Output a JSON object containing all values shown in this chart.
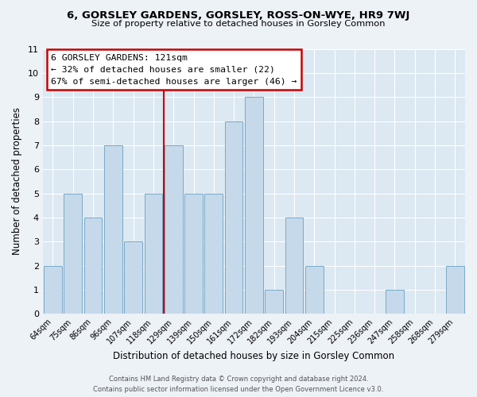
{
  "title": "6, GORSLEY GARDENS, GORSLEY, ROSS-ON-WYE, HR9 7WJ",
  "subtitle": "Size of property relative to detached houses in Gorsley Common",
  "xlabel": "Distribution of detached houses by size in Gorsley Common",
  "ylabel": "Number of detached properties",
  "bins": [
    "64sqm",
    "75sqm",
    "86sqm",
    "96sqm",
    "107sqm",
    "118sqm",
    "129sqm",
    "139sqm",
    "150sqm",
    "161sqm",
    "172sqm",
    "182sqm",
    "193sqm",
    "204sqm",
    "215sqm",
    "225sqm",
    "236sqm",
    "247sqm",
    "258sqm",
    "268sqm",
    "279sqm"
  ],
  "values": [
    2,
    5,
    4,
    7,
    3,
    5,
    7,
    5,
    5,
    8,
    9,
    1,
    4,
    2,
    0,
    0,
    0,
    1,
    0,
    0,
    2
  ],
  "bar_color": "#c6d9ea",
  "bar_edge_color": "#7aaac8",
  "vline_color": "#cc0000",
  "vline_x_index": 5.5,
  "annotation_title": "6 GORSLEY GARDENS: 121sqm",
  "annotation_line1": "← 32% of detached houses are smaller (22)",
  "annotation_line2": "67% of semi-detached houses are larger (46) →",
  "annotation_box_facecolor": "#ffffff",
  "annotation_box_edgecolor": "#cc0000",
  "ylim": [
    0,
    11
  ],
  "yticks": [
    0,
    1,
    2,
    3,
    4,
    5,
    6,
    7,
    8,
    9,
    10,
    11
  ],
  "plot_bgcolor": "#dce8f2",
  "fig_bgcolor": "#edf2f7",
  "grid_color": "#ffffff",
  "footer1": "Contains HM Land Registry data © Crown copyright and database right 2024.",
  "footer2": "Contains public sector information licensed under the Open Government Licence v3.0."
}
